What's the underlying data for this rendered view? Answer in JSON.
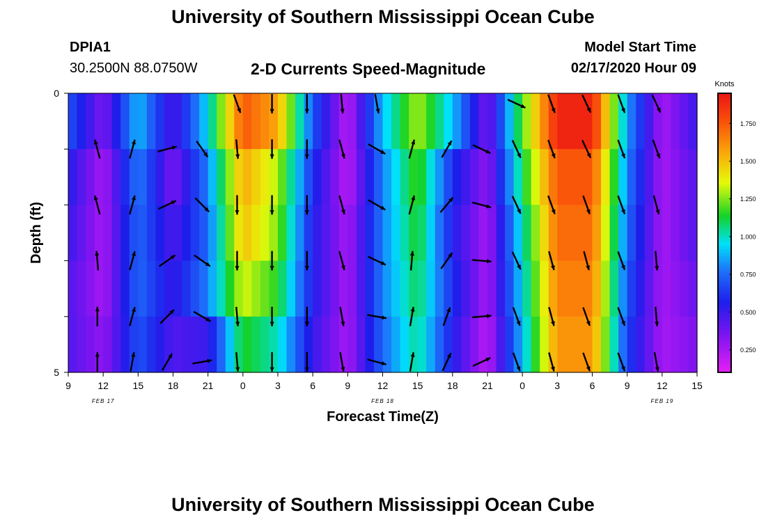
{
  "header": {
    "title": "University of Southern Mississippi Ocean Cube",
    "station_id": "DPIA1",
    "station_coords": "30.2500N 88.0750W",
    "plot_title": "2-D Currents Speed-Magnitude",
    "model_label": "Model Start Time",
    "model_time": "02/17/2020 Hour 09"
  },
  "footer": {
    "title": "University of Southern Mississippi Ocean Cube"
  },
  "chart_data": {
    "type": "heatmap",
    "xlabel": "Forecast Time(Z)",
    "ylabel": "Depth (ft)",
    "x_ticks": [
      "9",
      "12",
      "15",
      "18",
      "21",
      "0",
      "3",
      "6",
      "9",
      "12",
      "15",
      "18",
      "21",
      "0",
      "3",
      "6",
      "9",
      "12",
      "15"
    ],
    "date_labels": [
      "FEB 17",
      "FEB 18",
      "FEB 19"
    ],
    "y_ticks": [
      "0",
      "5"
    ],
    "xlim_hours": [
      0,
      54
    ],
    "ylim_ft": [
      0,
      5
    ],
    "depth_rows_ft": [
      0.5,
      1.5,
      2.5,
      3.5,
      4.5
    ],
    "colorbar": {
      "title": "Knots",
      "ticks": [
        "1.750",
        "1.500",
        "1.250",
        "1.000",
        "0.750",
        "0.500",
        "0.250"
      ],
      "tick_values": [
        1.75,
        1.5,
        1.25,
        1.0,
        0.75,
        0.5,
        0.25
      ],
      "range": [
        0.1,
        1.95
      ]
    },
    "speed_knots_by_hour": {
      "hours": [
        0,
        3,
        6,
        9,
        12,
        15,
        18,
        21,
        24,
        27,
        30,
        33,
        36,
        39,
        42,
        45,
        48,
        51,
        54
      ],
      "rows": [
        [
          0.7,
          0.35,
          0.9,
          0.45,
          0.95,
          1.75,
          1.55,
          0.7,
          0.2,
          0.9,
          1.3,
          0.9,
          0.35,
          1.2,
          1.9,
          1.9,
          0.85,
          0.25,
          0.5
        ],
        [
          0.55,
          0.25,
          0.8,
          0.35,
          0.8,
          1.55,
          1.3,
          0.6,
          0.2,
          0.8,
          1.2,
          0.6,
          0.3,
          1.1,
          1.75,
          1.75,
          0.8,
          0.25,
          0.45
        ],
        [
          0.5,
          0.25,
          0.75,
          0.45,
          0.75,
          1.5,
          1.25,
          0.55,
          0.25,
          0.8,
          1.15,
          0.55,
          0.25,
          1.0,
          1.7,
          1.7,
          0.75,
          0.25,
          0.45
        ],
        [
          0.45,
          0.25,
          0.75,
          0.5,
          0.8,
          1.35,
          1.15,
          0.55,
          0.25,
          0.8,
          1.1,
          0.6,
          0.25,
          0.95,
          1.65,
          1.65,
          0.7,
          0.25,
          0.4
        ],
        [
          0.45,
          0.3,
          0.7,
          0.45,
          0.5,
          1.15,
          1.0,
          0.5,
          0.25,
          0.75,
          1.05,
          0.55,
          0.2,
          0.9,
          1.6,
          1.6,
          0.65,
          0.25,
          0.35
        ]
      ]
    },
    "current_vectors_hours": [
      2.5,
      5.5,
      8.5,
      11.5,
      14.5,
      17.5,
      20.5,
      23.5,
      26.5,
      29.5,
      32.5,
      35.5,
      38.5,
      41.5,
      44.5,
      47.5,
      50.5
    ],
    "current_vectors_direction_deg": [
      [
        null,
        null,
        null,
        null,
        160,
        180,
        180,
        175,
        170,
        null,
        null,
        null,
        115,
        160,
        155,
        160,
        155
      ],
      [
        345,
        15,
        75,
        145,
        175,
        180,
        180,
        165,
        120,
        15,
        30,
        115,
        155,
        160,
        155,
        160,
        160
      ],
      [
        345,
        15,
        65,
        135,
        180,
        180,
        180,
        165,
        120,
        15,
        40,
        105,
        155,
        160,
        160,
        160,
        165
      ],
      [
        355,
        15,
        55,
        125,
        180,
        180,
        180,
        165,
        115,
        5,
        35,
        95,
        155,
        165,
        165,
        160,
        175
      ],
      [
        0,
        15,
        45,
        120,
        175,
        180,
        180,
        170,
        100,
        10,
        20,
        85,
        160,
        165,
        160,
        160,
        175
      ],
      [
        0,
        10,
        30,
        80,
        175,
        180,
        180,
        170,
        105,
        10,
        25,
        65,
        160,
        165,
        160,
        160,
        170
      ]
    ],
    "current_vectors_depth_rows": [
      0,
      1,
      2,
      3,
      4,
      5
    ],
    "grid": false,
    "legend": "right-colorbar"
  }
}
